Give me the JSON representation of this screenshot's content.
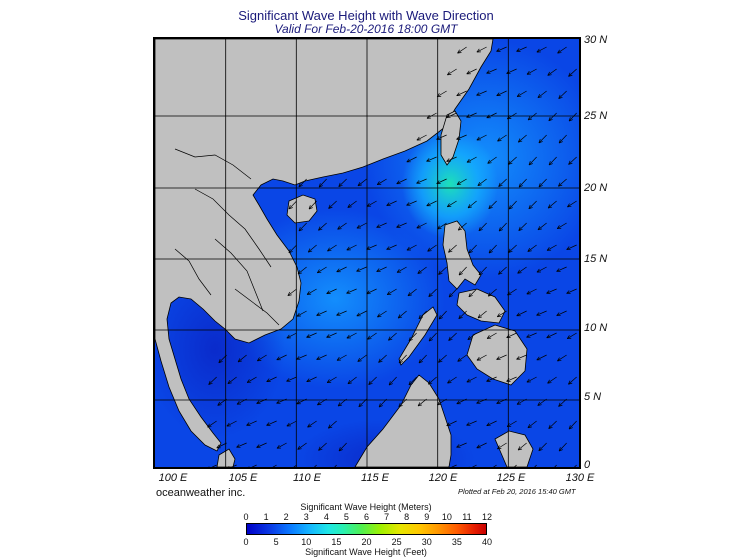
{
  "header": {
    "title": "Significant Wave Height with Wave Direction",
    "subtitle": "Valid For Feb-20-2016 18:00 GMT"
  },
  "map": {
    "lon_labels": [
      "100 E",
      "105 E",
      "110 E",
      "115 E",
      "120 E",
      "125 E",
      "130 E"
    ],
    "lat_labels": [
      "30 N",
      "25 N",
      "20 N",
      "15 N",
      "10 N",
      "5 N",
      "0"
    ],
    "colors": {
      "land": "#c0c0c0",
      "sea_deep": "#0a3fdc",
      "sea_mid": "#1466f0",
      "sea_light": "#14a0ff",
      "sea_peak": "#1ee6c8",
      "grid": "#000000"
    }
  },
  "footer": {
    "brand": "oceanweather inc.",
    "plotted": "Plotted at Feb 20, 2016 15:40 GMT"
  },
  "legend": {
    "meters_title": "Significant Wave Height (Meters)",
    "feet_title": "Significant Wave Height (Feet)",
    "meters_ticks": [
      "0",
      "1",
      "2",
      "3",
      "4",
      "5",
      "6",
      "7",
      "8",
      "9",
      "10",
      "11",
      "12"
    ],
    "feet_ticks": [
      "0",
      "5",
      "10",
      "15",
      "20",
      "25",
      "30",
      "35",
      "40"
    ]
  }
}
